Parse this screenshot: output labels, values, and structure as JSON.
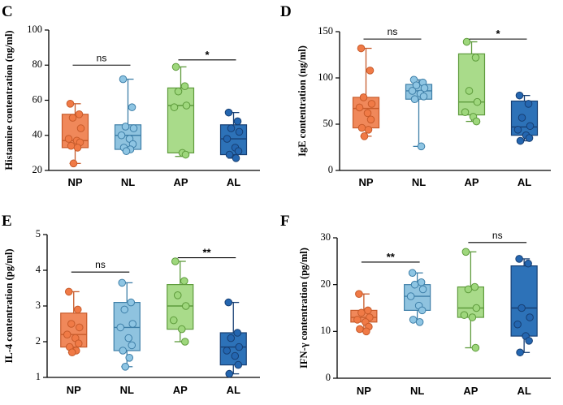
{
  "colors": {
    "NP": {
      "fill": "#F0885A",
      "stroke": "#C75B2B",
      "point": "#F07A46"
    },
    "NL": {
      "fill": "#8FC3DF",
      "stroke": "#3E7FA8",
      "point": "#8EC5E3"
    },
    "AP": {
      "fill": "#A9DB8A",
      "stroke": "#5E9B3C",
      "point": "#9ED77C"
    },
    "AL": {
      "fill": "#2D72B8",
      "stroke": "#173F73",
      "point": "#2466B0"
    }
  },
  "chart_data": [
    {
      "panel": "C",
      "type": "box",
      "ylabel": "Histamine contentration (ng/ml)",
      "ylim": [
        20,
        100
      ],
      "yticks": [
        20,
        40,
        60,
        80,
        100
      ],
      "categories": [
        "NP",
        "NL",
        "AP",
        "AL"
      ],
      "series": [
        {
          "name": "NP",
          "box": {
            "min": 24,
            "q1": 33,
            "median": 37,
            "q3": 52,
            "max": 58
          },
          "points": [
            58,
            52,
            50,
            44,
            38,
            37,
            36,
            34,
            33,
            24
          ]
        },
        {
          "name": "NL",
          "box": {
            "min": 31,
            "q1": 32,
            "median": 40,
            "q3": 46,
            "max": 72
          },
          "points": [
            72,
            56,
            45,
            44,
            40,
            38,
            35,
            33,
            32,
            31
          ]
        },
        {
          "name": "AP",
          "box": {
            "min": 28,
            "q1": 30,
            "median": 57,
            "q3": 67,
            "max": 79
          },
          "points": [
            79,
            68,
            65,
            57,
            56,
            30,
            29
          ]
        },
        {
          "name": "AL",
          "box": {
            "min": 27,
            "q1": 29,
            "median": 38,
            "q3": 46,
            "max": 53
          },
          "points": [
            53,
            48,
            44,
            42,
            38,
            33,
            31,
            29,
            27
          ]
        }
      ],
      "annotations": [
        {
          "from": "NP",
          "to": "NL",
          "y": 80,
          "label": "ns"
        },
        {
          "from": "AP",
          "to": "AL",
          "y": 83,
          "label": "*"
        }
      ]
    },
    {
      "panel": "D",
      "type": "box",
      "ylabel": "IgE contentration (ng/ml)",
      "ylim": [
        0,
        150
      ],
      "yticks": [
        0,
        50,
        100,
        150
      ],
      "categories": [
        "NP",
        "NL",
        "AP",
        "AL"
      ],
      "series": [
        {
          "name": "NP",
          "box": {
            "min": 37,
            "q1": 46,
            "median": 67,
            "q3": 79,
            "max": 132
          },
          "points": [
            132,
            108,
            79,
            72,
            68,
            62,
            55,
            46,
            44,
            37
          ]
        },
        {
          "name": "NL",
          "box": {
            "min": 26,
            "q1": 77,
            "median": 86,
            "q3": 93,
            "max": 98
          },
          "points": [
            98,
            95,
            92,
            89,
            86,
            83,
            80,
            77,
            26
          ]
        },
        {
          "name": "AP",
          "box": {
            "min": 53,
            "q1": 60,
            "median": 74,
            "q3": 126,
            "max": 139
          },
          "points": [
            139,
            122,
            86,
            74,
            63,
            58,
            53
          ]
        },
        {
          "name": "AL",
          "box": {
            "min": 32,
            "q1": 38,
            "median": 47,
            "q3": 75,
            "max": 81
          },
          "points": [
            81,
            72,
            57,
            48,
            44,
            38,
            35,
            32
          ]
        }
      ],
      "annotations": [
        {
          "from": "NP",
          "to": "NL",
          "y": 142,
          "label": "ns"
        },
        {
          "from": "AP",
          "to": "AL",
          "y": 142,
          "label": "*"
        }
      ]
    },
    {
      "panel": "E",
      "type": "box",
      "ylabel": "IL-4  contentration (pg/ml)",
      "ylim": [
        1,
        5
      ],
      "yticks": [
        1,
        2,
        3,
        4,
        5
      ],
      "categories": [
        "NP",
        "NL",
        "AP",
        "AL"
      ],
      "series": [
        {
          "name": "NP",
          "box": {
            "min": 1.7,
            "q1": 1.85,
            "median": 2.2,
            "q3": 2.8,
            "max": 3.4
          },
          "points": [
            3.4,
            2.9,
            2.5,
            2.4,
            2.2,
            2.1,
            1.95,
            1.85,
            1.75,
            1.7
          ]
        },
        {
          "name": "NL",
          "box": {
            "min": 1.3,
            "q1": 1.75,
            "median": 2.4,
            "q3": 3.1,
            "max": 3.65
          },
          "points": [
            3.65,
            3.1,
            2.9,
            2.5,
            2.4,
            2.1,
            1.9,
            1.75,
            1.55,
            1.3
          ]
        },
        {
          "name": "AP",
          "box": {
            "min": 2.0,
            "q1": 2.35,
            "median": 3.0,
            "q3": 3.6,
            "max": 4.25
          },
          "points": [
            4.25,
            3.7,
            3.3,
            3.0,
            2.6,
            2.35,
            2.0
          ]
        },
        {
          "name": "AL",
          "box": {
            "min": 1.1,
            "q1": 1.35,
            "median": 1.85,
            "q3": 2.25,
            "max": 3.1
          },
          "points": [
            3.1,
            2.25,
            2.1,
            1.85,
            1.75,
            1.6,
            1.35,
            1.1
          ]
        }
      ],
      "annotations": [
        {
          "from": "NP",
          "to": "NL",
          "y": 3.95,
          "label": "ns"
        },
        {
          "from": "AP",
          "to": "AL",
          "y": 4.35,
          "label": "**"
        }
      ]
    },
    {
      "panel": "F",
      "type": "box",
      "ylabel": "IFN-γ  contentration (pg/ml)",
      "ylim": [
        0,
        30
      ],
      "yticks": [
        0,
        10,
        20,
        30
      ],
      "categories": [
        "NP",
        "NL",
        "AP",
        "AL"
      ],
      "series": [
        {
          "name": "NP",
          "box": {
            "min": 10,
            "q1": 12,
            "median": 13,
            "q3": 14.5,
            "max": 18
          },
          "points": [
            18,
            14.5,
            14,
            13,
            12.5,
            12,
            11,
            10.5,
            10
          ]
        },
        {
          "name": "NL",
          "box": {
            "min": 12,
            "q1": 14.5,
            "median": 17.5,
            "q3": 20,
            "max": 22.5
          },
          "points": [
            22.5,
            20.5,
            20,
            19,
            17.5,
            15.5,
            14.5,
            12.5,
            12
          ]
        },
        {
          "name": "AP",
          "box": {
            "min": 6.5,
            "q1": 13,
            "median": 15,
            "q3": 19.5,
            "max": 27
          },
          "points": [
            27,
            19.5,
            19,
            15,
            13.5,
            13,
            6.5
          ]
        },
        {
          "name": "AL",
          "box": {
            "min": 5.5,
            "q1": 9,
            "median": 15,
            "q3": 24,
            "max": 25.5
          },
          "points": [
            25.5,
            24.5,
            15,
            13,
            11.5,
            9,
            8,
            5.5
          ]
        }
      ],
      "annotations": [
        {
          "from": "NP",
          "to": "NL",
          "y": 24.8,
          "label": "**"
        },
        {
          "from": "AP",
          "to": "AL",
          "y": 29,
          "label": "ns"
        }
      ]
    }
  ]
}
